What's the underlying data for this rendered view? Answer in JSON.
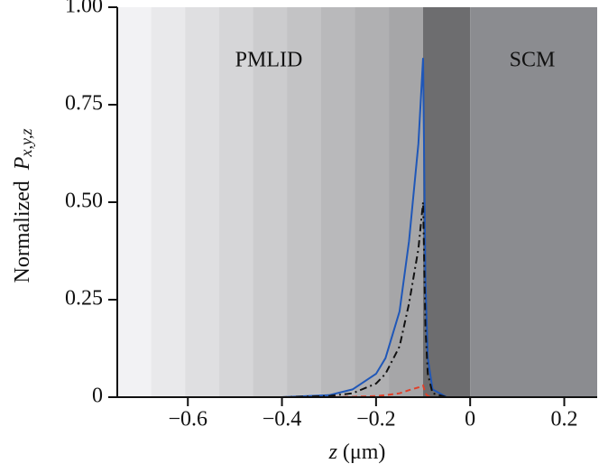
{
  "chart_data": {
    "type": "line",
    "ylabel_text": "Normalized",
    "ylabel_symbol": "P",
    "ylabel_subscript": "x,y,z",
    "xlabel_symbol": "z",
    "xlabel_unit": "(μm)",
    "annotations": [
      "PMLID",
      "SCM"
    ],
    "x": [
      -0.75,
      -0.4,
      -0.3,
      -0.25,
      -0.2,
      -0.18,
      -0.15,
      -0.13,
      -0.11,
      -0.1,
      -0.095,
      -0.09,
      -0.08,
      -0.05,
      0,
      0.27
    ],
    "series": [
      {
        "color": "#1f57b8",
        "dash": "",
        "values": [
          0,
          0,
          0.005,
          0.02,
          0.06,
          0.1,
          0.22,
          0.4,
          0.65,
          0.87,
          0.3,
          0.1,
          0.02,
          0,
          0,
          0
        ]
      },
      {
        "color": "#111111",
        "dash": "8 4 2 4",
        "values": [
          0,
          0,
          0.003,
          0.01,
          0.035,
          0.06,
          0.13,
          0.24,
          0.38,
          0.5,
          0.18,
          0.06,
          0.01,
          0,
          0,
          0
        ]
      },
      {
        "color": "#e0402a",
        "dash": "6 4",
        "values": [
          0,
          0,
          0,
          0.001,
          0.003,
          0.005,
          0.01,
          0.018,
          0.025,
          0.03,
          0.01,
          0.003,
          0,
          0,
          0,
          0
        ]
      }
    ],
    "xlim": [
      -0.75,
      0.27
    ],
    "ylim": [
      0,
      1
    ],
    "xticks": [
      {
        "value": -0.6,
        "label": "−0.6"
      },
      {
        "value": -0.4,
        "label": "−0.4"
      },
      {
        "value": -0.2,
        "label": "−0.2"
      },
      0,
      0.2
    ],
    "yticks": [
      0,
      0.25,
      {
        "value": 0.5,
        "label": "0.50"
      },
      0.75,
      {
        "value": 1,
        "label": "1.00"
      }
    ],
    "interface": -0.1,
    "scm_start": 0
  }
}
